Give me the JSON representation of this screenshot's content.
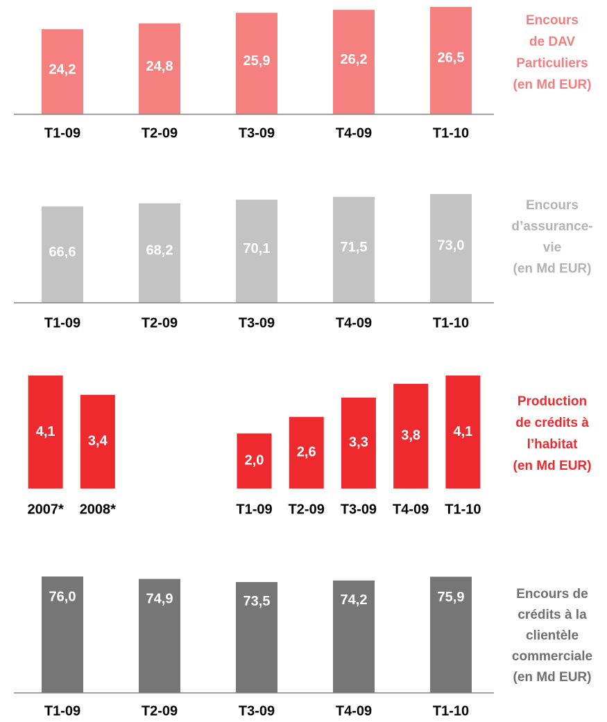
{
  "chart_data": [
    {
      "type": "bar",
      "title": [
        "Encours",
        "de DAV",
        "Particuliers",
        "(en Md EUR)"
      ],
      "title_color": "#f08080",
      "categories": [
        "T1-09",
        "T2-09",
        "T3-09",
        "T4-09",
        "T1-10"
      ],
      "values": [
        24.2,
        24.8,
        25.9,
        26.2,
        26.5
      ],
      "value_labels": [
        "24,2",
        "24,8",
        "25,9",
        "26,2",
        "26,5"
      ],
      "color": "#f48080",
      "ylim": [
        15.4,
        26.5
      ],
      "axis_line": true
    },
    {
      "type": "bar",
      "title": [
        "Encours",
        "d’assurance-",
        "vie",
        "(en Md EUR)"
      ],
      "title_color": "#b3b3b3",
      "categories": [
        "T1-09",
        "T2-09",
        "T3-09",
        "T4-09",
        "T1-10"
      ],
      "values": [
        66.6,
        68.2,
        70.1,
        71.5,
        73.0
      ],
      "value_labels": [
        "66,6",
        "68,2",
        "70,1",
        "71,5",
        "73,0"
      ],
      "color": "#c3c3c3",
      "ylim": [
        17,
        73
      ],
      "axis_line": true
    },
    {
      "type": "bar",
      "title": [
        "Production",
        "de crédits à",
        "l’habitat",
        "(en Md EUR)"
      ],
      "title_color": "#ee2a2f",
      "categories": [
        "2007*",
        "2008*",
        null,
        null,
        "T1-09",
        "T2-09",
        "T3-09",
        "T4-09",
        "T1-10"
      ],
      "values": [
        4.1,
        3.4,
        null,
        null,
        2.0,
        2.6,
        3.3,
        3.8,
        4.1
      ],
      "value_labels": [
        "4,1",
        "3,4",
        null,
        null,
        "2,0",
        "2,6",
        "3,3",
        "3,8",
        "4,1"
      ],
      "color": "#ee2a2f",
      "ylim": [
        0,
        4.1
      ],
      "axis_line": false
    },
    {
      "type": "bar",
      "title": [
        "Encours de",
        "crédits à la",
        "clientèle",
        "commerciale",
        "(en Md EUR)"
      ],
      "title_color": "#6e6e6e",
      "categories": [
        "T1-09",
        "T2-09",
        "T3-09",
        "T4-09",
        "T1-10"
      ],
      "values": [
        76.0,
        74.9,
        73.5,
        74.2,
        75.9
      ],
      "value_labels": [
        "76,0",
        "74,9",
        "73,5",
        "74,2",
        "75,9"
      ],
      "color": "#767676",
      "ylim": [
        23.5,
        76.0
      ],
      "axis_line": true
    }
  ]
}
